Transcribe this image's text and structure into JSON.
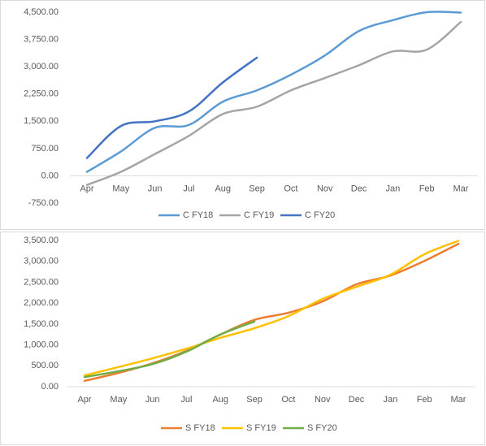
{
  "chart_data": [
    {
      "type": "line",
      "categories": [
        "Apr",
        "May",
        "Jun",
        "Jul",
        "Aug",
        "Sep",
        "Oct",
        "Nov",
        "Dec",
        "Jan",
        "Feb",
        "Mar"
      ],
      "ylim": [
        -750,
        4500
      ],
      "yticks": [
        {
          "value": -750,
          "label": "-750.00"
        },
        {
          "value": 0,
          "label": "0.00"
        },
        {
          "value": 750,
          "label": "750.00"
        },
        {
          "value": 1500,
          "label": "1,500.00"
        },
        {
          "value": 2250,
          "label": "2,250.00"
        },
        {
          "value": 3000,
          "label": "3,000.00"
        },
        {
          "value": 3750,
          "label": "3,750.00"
        },
        {
          "value": 4500,
          "label": "4,500.00"
        }
      ],
      "series": [
        {
          "name": "C FY18",
          "color": "#5b9bd5",
          "values": [
            110,
            670,
            1320,
            1400,
            2040,
            2350,
            2780,
            3310,
            3980,
            4280,
            4500,
            4490
          ]
        },
        {
          "name": "C FY19",
          "color": "#a5a5a5",
          "values": [
            -250,
            110,
            600,
            1100,
            1700,
            1900,
            2350,
            2690,
            3040,
            3420,
            3470,
            4230
          ]
        },
        {
          "name": "C FY20",
          "color": "#4472c4",
          "values": [
            490,
            1370,
            1500,
            1770,
            2570,
            3250,
            null,
            null,
            null,
            null,
            null,
            null
          ]
        }
      ],
      "legend": "bottom"
    },
    {
      "type": "line",
      "categories": [
        "Apr",
        "May",
        "Jun",
        "Jul",
        "Aug",
        "Sep",
        "Oct",
        "Nov",
        "Dec",
        "Jan",
        "Feb",
        "Mar"
      ],
      "ylim": [
        0,
        3500
      ],
      "yticks": [
        {
          "value": 0,
          "label": "0.00"
        },
        {
          "value": 500,
          "label": "500.00"
        },
        {
          "value": 1000,
          "label": "1,000.00"
        },
        {
          "value": 1500,
          "label": "1,500.00"
        },
        {
          "value": 2000,
          "label": "2,000.00"
        },
        {
          "value": 2500,
          "label": "2,500.00"
        },
        {
          "value": 3000,
          "label": "3,000.00"
        },
        {
          "value": 3500,
          "label": "3,500.00"
        }
      ],
      "series": [
        {
          "name": "S FY18",
          "color": "#ed7d31",
          "values": [
            140,
            330,
            560,
            860,
            1250,
            1600,
            1770,
            2040,
            2450,
            2660,
            3010,
            3420
          ]
        },
        {
          "name": "S FY19",
          "color": "#ffc000",
          "values": [
            270,
            470,
            680,
            910,
            1170,
            1400,
            1690,
            2100,
            2390,
            2680,
            3170,
            3490
          ]
        },
        {
          "name": "S FY20",
          "color": "#70ad47",
          "values": [
            230,
            370,
            540,
            840,
            1250,
            1560,
            null,
            null,
            null,
            null,
            null,
            null
          ]
        }
      ],
      "legend": "bottom"
    }
  ]
}
